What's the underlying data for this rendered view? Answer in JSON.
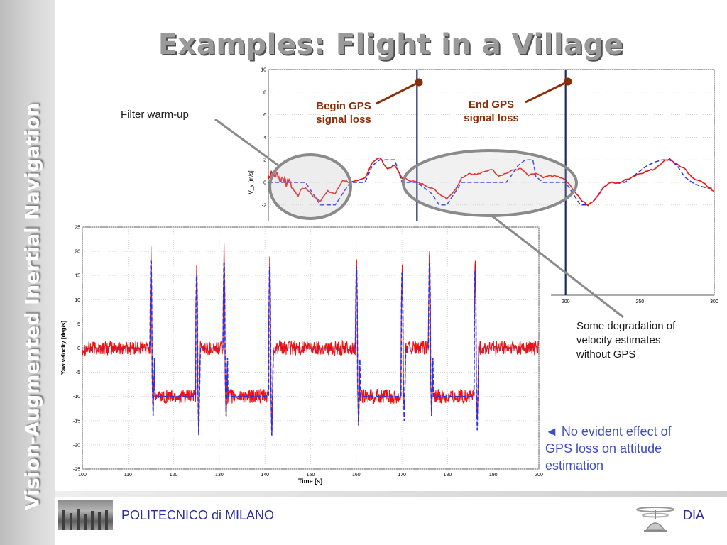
{
  "sidebar": {
    "text": "Vision-Augmented Inertial Navigation"
  },
  "title": "Examples: Flight in a Village",
  "annotations": {
    "begin_gps_line1": "Begin GPS",
    "begin_gps_line2": "signal loss",
    "end_gps_line1": "End GPS",
    "end_gps_line2": "signal loss",
    "warmup": "Filter warm-up",
    "degradation_line1": "Some degradation of",
    "degradation_line2": "velocity estimates",
    "degradation_line3": "without GPS",
    "attitude_line1": "◄ No evident effect of",
    "attitude_line2": "GPS loss on attitude",
    "attitude_line3": "estimation"
  },
  "footer": {
    "left": "POLITECNICO di MILANO",
    "right": "DIA"
  },
  "colors": {
    "estimate": "#ee1111",
    "reference": "#2233ee",
    "gps_marker": "#1a2a5a",
    "annotation": "#8a2e08",
    "ellipse": "#8a8a8a"
  },
  "chart_data": [
    {
      "type": "line",
      "title": "",
      "xlabel": "",
      "ylabel": "V_y [m/s]",
      "xlim": [
        0,
        300
      ],
      "ylim": [
        -10,
        10
      ],
      "yticks": [
        10,
        8,
        6,
        4,
        2,
        0,
        -2
      ],
      "xticks": [
        200,
        250,
        300
      ],
      "gps_loss": {
        "begin": 100,
        "end": 200
      },
      "series": [
        {
          "name": "",
          "color": "#2233ee",
          "dash": "6,3",
          "x": [
            0,
            20,
            25,
            35,
            45,
            55,
            60,
            65,
            70,
            75,
            85,
            90,
            95,
            100,
            105,
            110,
            115,
            120,
            125,
            130,
            135,
            140,
            145,
            150,
            155,
            160,
            163,
            168,
            173,
            178,
            180,
            185,
            190,
            195,
            200,
            205,
            210,
            215,
            220,
            225,
            230,
            235,
            240,
            245,
            250,
            255,
            260,
            265,
            270,
            275,
            280,
            285,
            290,
            295,
            300
          ],
          "y": [
            0,
            0,
            0,
            -2,
            -2,
            0,
            0,
            0,
            1.5,
            2,
            2,
            0,
            0,
            0,
            -0.5,
            -1,
            -2,
            -2,
            -1,
            0,
            0,
            0,
            0,
            0,
            0,
            0,
            0.5,
            1.5,
            2,
            2,
            0.5,
            0,
            0,
            0,
            0,
            -1,
            -2,
            -2,
            -1.5,
            -0.5,
            0,
            0,
            0,
            0.5,
            1,
            1.5,
            1.8,
            2,
            2,
            1.5,
            0.5,
            0,
            -0.3,
            -0.5,
            -0.5
          ]
        },
        {
          "name": "",
          "color": "#ee1111",
          "dash": "",
          "x": [
            0,
            2,
            4,
            6,
            8,
            10,
            12,
            14,
            16,
            18,
            20,
            22,
            25,
            30,
            35,
            40,
            45,
            50,
            55,
            60,
            65,
            70,
            75,
            80,
            85,
            90,
            95,
            100,
            105,
            110,
            115,
            120,
            125,
            130,
            135,
            140,
            145,
            150,
            155,
            160,
            165,
            170,
            175,
            180,
            185,
            190,
            195,
            200,
            205,
            210,
            215,
            220,
            225,
            230,
            235,
            240,
            245,
            250,
            255,
            260,
            265,
            270,
            275,
            280,
            285,
            290,
            295,
            300
          ],
          "y": [
            0.3,
            1,
            0.5,
            0.8,
            0.2,
            0.5,
            -0.2,
            0.3,
            -0.5,
            -0.8,
            -1.2,
            -0.6,
            -0.5,
            -1.2,
            -1.6,
            -0.8,
            -1.0,
            0.2,
            0,
            0.1,
            0.4,
            1.8,
            2.2,
            1.2,
            1.5,
            0.4,
            0.2,
            0,
            -0.2,
            -0.5,
            -1.0,
            -1.4,
            -0.8,
            0.4,
            0.8,
            0.7,
            0.9,
            1.2,
            0.6,
            0.8,
            1.1,
            1.2,
            0.6,
            0.8,
            0.4,
            0.6,
            0.5,
            0.2,
            -0.6,
            -1.5,
            -2.0,
            -1.5,
            -0.5,
            0,
            -0.1,
            0.2,
            0.5,
            0.8,
            1.0,
            1.2,
            1.8,
            2.1,
            1.6,
            1.2,
            0.4,
            0.2,
            -0.3,
            -0.8
          ]
        }
      ]
    },
    {
      "type": "line",
      "title": "",
      "xlabel": "Time [s]",
      "ylabel": "Yaw velocity [deg/s]",
      "xlim": [
        100,
        200
      ],
      "ylim": [
        -25,
        25
      ],
      "xticks": [
        100,
        110,
        120,
        130,
        140,
        150,
        160,
        170,
        180,
        190,
        200
      ],
      "yticks": [
        25,
        20,
        15,
        10,
        5,
        0,
        -5,
        -10,
        -15,
        -20,
        -25
      ],
      "levels": [
        {
          "from": 100,
          "to": 115.5,
          "value": 0
        },
        {
          "from": 115.5,
          "to": 125.5,
          "value": -10
        },
        {
          "from": 125.5,
          "to": 131.5,
          "value": 0
        },
        {
          "from": 131.5,
          "to": 141.5,
          "value": -10
        },
        {
          "from": 141.5,
          "to": 160,
          "value": 0
        },
        {
          "from": 160,
          "to": 170,
          "value": -10
        },
        {
          "from": 170,
          "to": 176.5,
          "value": 0
        },
        {
          "from": 176.5,
          "to": 186.5,
          "value": -10
        },
        {
          "from": 186.5,
          "to": 200,
          "value": 0
        }
      ],
      "spikes": [
        {
          "t": 115,
          "peak": 21.5,
          "trough": -14
        },
        {
          "t": 125,
          "peak": 18,
          "trough": -18
        },
        {
          "t": 131,
          "peak": 21,
          "trough": -14
        },
        {
          "t": 141,
          "peak": 20,
          "trough": -18
        },
        {
          "t": 160,
          "peak": 20,
          "trough": -16
        },
        {
          "t": 170,
          "peak": 18.5,
          "trough": -15
        },
        {
          "t": 176,
          "peak": 21,
          "trough": -14
        },
        {
          "t": 186,
          "peak": 19,
          "trough": -17
        }
      ],
      "noise_amplitude": 1.5,
      "series": [
        {
          "name": "",
          "color": "#2233ee",
          "dash": "6,3"
        },
        {
          "name": "",
          "color": "#ee1111",
          "dash": ""
        }
      ]
    }
  ]
}
